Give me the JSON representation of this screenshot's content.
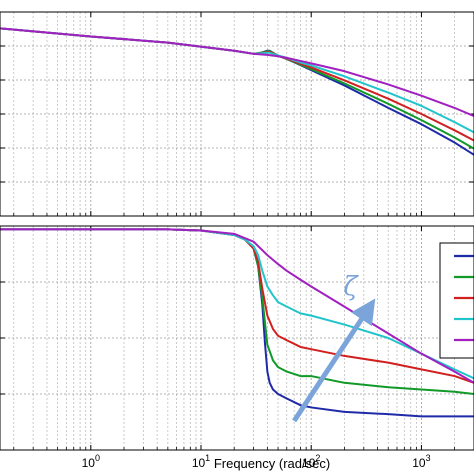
{
  "chart_data": [
    {
      "panel": "magnitude",
      "type": "line",
      "xscale": "log",
      "xlim": [
        0.15,
        3000
      ],
      "ylim": [
        0,
        1
      ],
      "grid": true,
      "series": [
        {
          "color": "#1f2aa8",
          "x": [
            0.15,
            1,
            5,
            20,
            30,
            35,
            40,
            42,
            45,
            50,
            60,
            80,
            100,
            200,
            500,
            1000,
            2000,
            3000
          ],
          "y": [
            0.92,
            0.88,
            0.85,
            0.81,
            0.795,
            0.8,
            0.81,
            0.81,
            0.8,
            0.785,
            0.77,
            0.74,
            0.715,
            0.64,
            0.53,
            0.45,
            0.36,
            0.3
          ]
        },
        {
          "color": "#119a28",
          "x": [
            0.15,
            1,
            5,
            20,
            30,
            35,
            40,
            42,
            45,
            50,
            60,
            80,
            100,
            200,
            500,
            1000,
            2000,
            3000
          ],
          "y": [
            0.92,
            0.88,
            0.85,
            0.81,
            0.795,
            0.8,
            0.808,
            0.808,
            0.8,
            0.786,
            0.77,
            0.742,
            0.72,
            0.65,
            0.55,
            0.47,
            0.385,
            0.33
          ]
        },
        {
          "color": "#d02020",
          "x": [
            0.15,
            1,
            5,
            20,
            30,
            35,
            40,
            42,
            45,
            50,
            60,
            80,
            100,
            200,
            500,
            1000,
            2000,
            3000
          ],
          "y": [
            0.92,
            0.88,
            0.85,
            0.81,
            0.795,
            0.798,
            0.804,
            0.804,
            0.798,
            0.786,
            0.772,
            0.746,
            0.728,
            0.665,
            0.575,
            0.5,
            0.42,
            0.37
          ]
        },
        {
          "color": "#22c4cc",
          "x": [
            0.15,
            1,
            5,
            20,
            30,
            35,
            40,
            42,
            45,
            50,
            60,
            80,
            100,
            200,
            500,
            1000,
            2000,
            3000
          ],
          "y": [
            0.92,
            0.88,
            0.85,
            0.81,
            0.795,
            0.797,
            0.8,
            0.8,
            0.795,
            0.787,
            0.775,
            0.752,
            0.738,
            0.685,
            0.605,
            0.54,
            0.46,
            0.41
          ]
        },
        {
          "color": "#a020c0",
          "x": [
            0.15,
            1,
            5,
            20,
            30,
            40,
            50,
            60,
            80,
            100,
            200,
            500,
            1000,
            2000,
            3000
          ],
          "y": [
            0.92,
            0.88,
            0.85,
            0.81,
            0.795,
            0.79,
            0.783,
            0.775,
            0.76,
            0.748,
            0.71,
            0.645,
            0.59,
            0.53,
            0.49
          ]
        }
      ]
    },
    {
      "panel": "lower",
      "type": "line",
      "xscale": "log",
      "xlim": [
        0.15,
        3000
      ],
      "ylim": [
        0,
        1
      ],
      "grid": true,
      "xlabel": "Frequency  (rad/sec)",
      "xticks": [
        {
          "value": 1,
          "base": "10",
          "exp": "0"
        },
        {
          "value": 10,
          "base": "10",
          "exp": "1"
        },
        {
          "value": 100,
          "base": "10",
          "exp": "2"
        },
        {
          "value": 1000,
          "base": "10",
          "exp": "3"
        }
      ],
      "series": [
        {
          "color": "#1f2aa8",
          "x": [
            0.15,
            1,
            5,
            10,
            20,
            25,
            30,
            33,
            36,
            38,
            40,
            42,
            45,
            50,
            60,
            80,
            100,
            200,
            500,
            1000,
            2000,
            3000
          ],
          "y": [
            0.985,
            0.985,
            0.985,
            0.98,
            0.96,
            0.94,
            0.9,
            0.82,
            0.65,
            0.48,
            0.35,
            0.3,
            0.27,
            0.25,
            0.23,
            0.2,
            0.19,
            0.17,
            0.16,
            0.15,
            0.15,
            0.15
          ]
        },
        {
          "color": "#119a28",
          "x": [
            0.15,
            1,
            5,
            10,
            20,
            25,
            30,
            33,
            36,
            40,
            45,
            50,
            60,
            80,
            100,
            200,
            500,
            1000,
            2000,
            3000
          ],
          "y": [
            0.985,
            0.985,
            0.985,
            0.98,
            0.96,
            0.94,
            0.9,
            0.82,
            0.68,
            0.47,
            0.4,
            0.37,
            0.35,
            0.33,
            0.33,
            0.3,
            0.28,
            0.27,
            0.26,
            0.25
          ]
        },
        {
          "color": "#d02020",
          "x": [
            0.15,
            1,
            5,
            10,
            20,
            25,
            30,
            33,
            36,
            40,
            45,
            50,
            60,
            80,
            100,
            200,
            500,
            1000,
            2000,
            3000
          ],
          "y": [
            0.985,
            0.985,
            0.985,
            0.98,
            0.96,
            0.94,
            0.9,
            0.84,
            0.72,
            0.6,
            0.54,
            0.51,
            0.49,
            0.46,
            0.45,
            0.42,
            0.39,
            0.36,
            0.33,
            0.3
          ]
        },
        {
          "color": "#22c4cc",
          "x": [
            0.15,
            1,
            5,
            10,
            20,
            25,
            30,
            33,
            36,
            40,
            45,
            50,
            60,
            80,
            100,
            200,
            500,
            1000,
            2000,
            3000
          ],
          "y": [
            0.985,
            0.985,
            0.985,
            0.98,
            0.96,
            0.94,
            0.91,
            0.87,
            0.8,
            0.73,
            0.69,
            0.66,
            0.64,
            0.61,
            0.6,
            0.56,
            0.5,
            0.43,
            0.36,
            0.32
          ]
        },
        {
          "color": "#a020c0",
          "x": [
            0.15,
            1,
            5,
            10,
            20,
            30,
            40,
            50,
            60,
            80,
            100,
            200,
            500,
            1000,
            2000,
            3000
          ],
          "y": [
            0.985,
            0.985,
            0.985,
            0.98,
            0.965,
            0.93,
            0.87,
            0.83,
            0.8,
            0.76,
            0.73,
            0.64,
            0.52,
            0.43,
            0.35,
            0.3
          ]
        }
      ],
      "annotations": [
        {
          "text": "ζ",
          "color": "#7ba4da",
          "arrow": {
            "from": [
              70,
              0.13
            ],
            "to": [
              330,
              0.63
            ]
          }
        }
      ]
    }
  ]
}
